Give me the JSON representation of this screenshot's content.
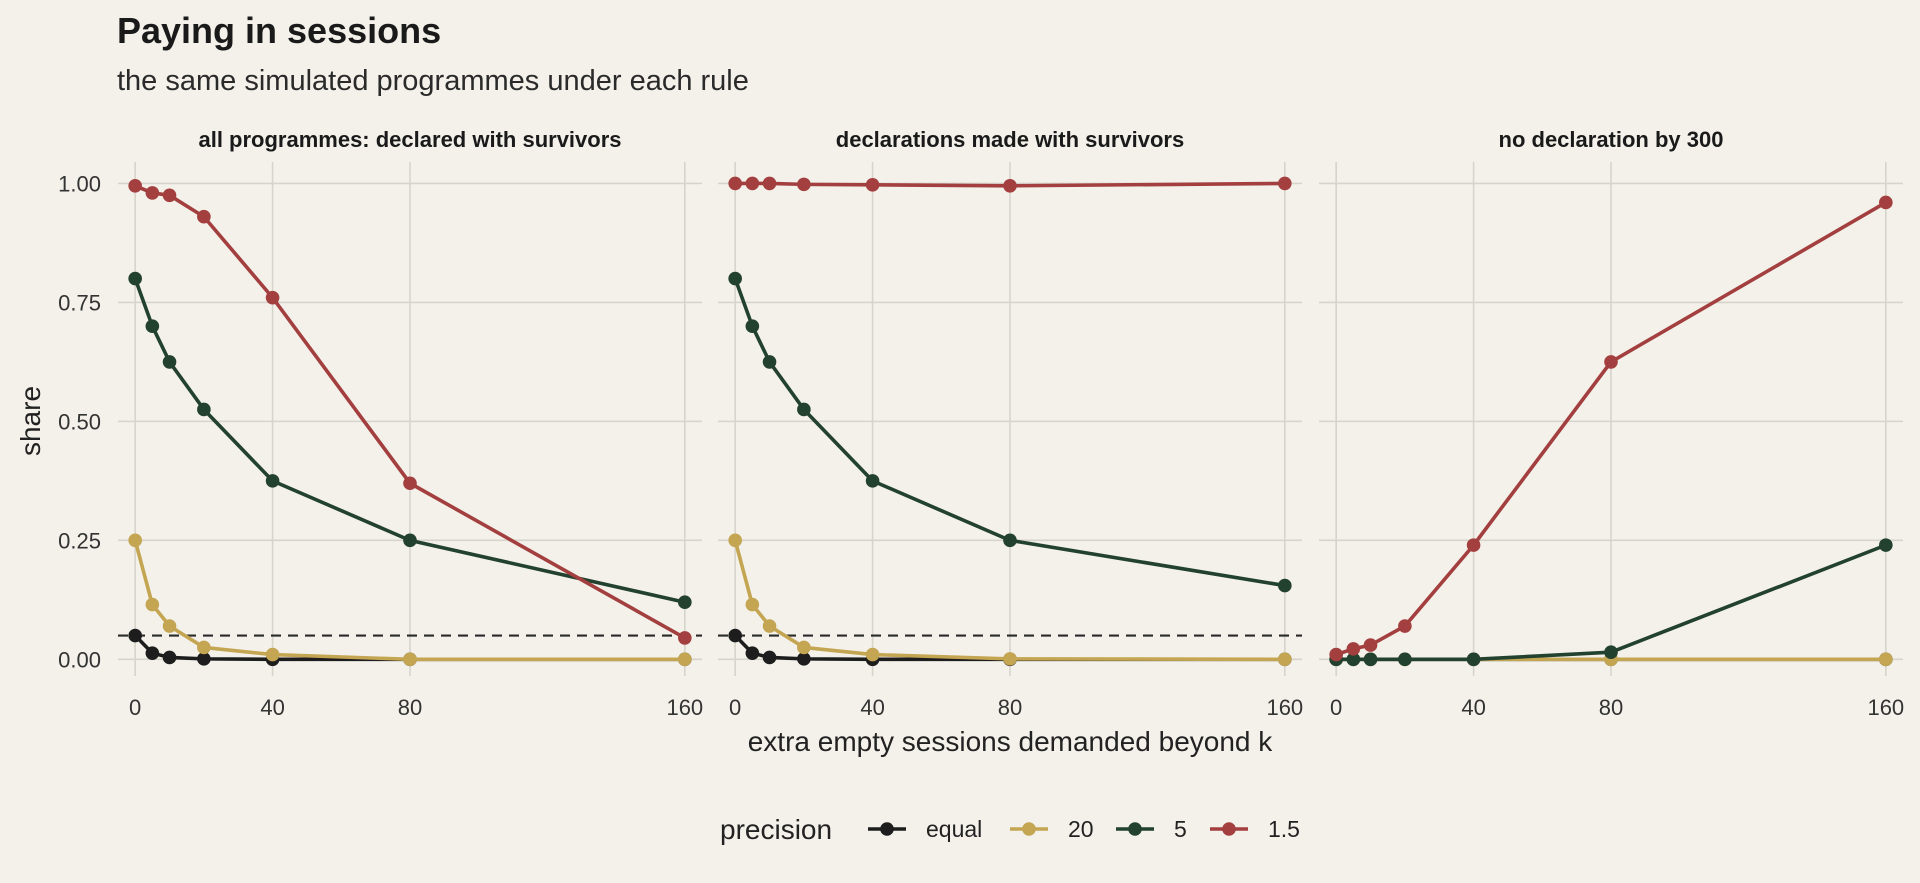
{
  "title": "Paying in sessions",
  "subtitle": "the same simulated programmes under each rule",
  "colors": {
    "background": "#f3f1ea",
    "grid": "#d6d4cb",
    "equal": "#1d1d1d",
    "20": "#c3a552",
    "5": "#23412f",
    "1.5": "#a33f3f"
  },
  "chart_data": {
    "type": "line",
    "xlabel": "extra empty sessions demanded beyond k",
    "ylabel": "share",
    "x": [
      0,
      5,
      10,
      20,
      40,
      80,
      160
    ],
    "x_ticks": [
      0,
      40,
      80,
      160
    ],
    "y_ticks": [
      "0.00",
      "0.25",
      "0.50",
      "0.75",
      "1.00"
    ],
    "xlim": [
      -5,
      165
    ],
    "ylim": [
      -0.035,
      1.045
    ],
    "reference_line": {
      "y": 0.05,
      "style": "dashed"
    },
    "legend": {
      "title": "precision",
      "position": "bottom"
    },
    "panels": [
      {
        "title": "all programmes: declared with survivors",
        "reference_line": true,
        "series": [
          {
            "name": "equal",
            "values": [
              0.05,
              0.013,
              0.004,
              0.001,
              0.0,
              0.0,
              0.0
            ]
          },
          {
            "name": "20",
            "values": [
              0.25,
              0.115,
              0.07,
              0.025,
              0.01,
              0.0,
              0.0
            ]
          },
          {
            "name": "5",
            "values": [
              0.8,
              0.7,
              0.625,
              0.525,
              0.375,
              0.25,
              0.12
            ]
          },
          {
            "name": "1.5",
            "values": [
              0.995,
              0.98,
              0.975,
              0.93,
              0.76,
              0.37,
              0.045
            ]
          }
        ]
      },
      {
        "title": "declarations made with survivors",
        "reference_line": true,
        "series": [
          {
            "name": "equal",
            "values": [
              0.05,
              0.013,
              0.004,
              0.001,
              0.0,
              0.0,
              0.0
            ]
          },
          {
            "name": "20",
            "values": [
              0.25,
              0.115,
              0.07,
              0.025,
              0.01,
              0.001,
              0.0
            ]
          },
          {
            "name": "5",
            "values": [
              0.8,
              0.7,
              0.625,
              0.525,
              0.375,
              0.25,
              0.155
            ]
          },
          {
            "name": "1.5",
            "values": [
              1.0,
              1.0,
              1.0,
              0.998,
              0.997,
              0.995,
              1.0
            ]
          }
        ]
      },
      {
        "title": "no declaration by 300",
        "reference_line": false,
        "series": [
          {
            "name": "equal",
            "values": [
              0.0,
              0.0,
              0.0,
              0.0,
              0.0,
              0.0,
              0.0
            ]
          },
          {
            "name": "20",
            "values": [
              0.0,
              0.0,
              0.0,
              0.0,
              0.0,
              0.0,
              0.0
            ]
          },
          {
            "name": "5",
            "values": [
              0.0,
              0.0,
              0.0,
              0.0,
              0.0,
              0.015,
              0.24
            ]
          },
          {
            "name": "1.5",
            "values": [
              0.01,
              0.022,
              0.03,
              0.07,
              0.24,
              0.625,
              0.96
            ]
          }
        ]
      }
    ]
  }
}
